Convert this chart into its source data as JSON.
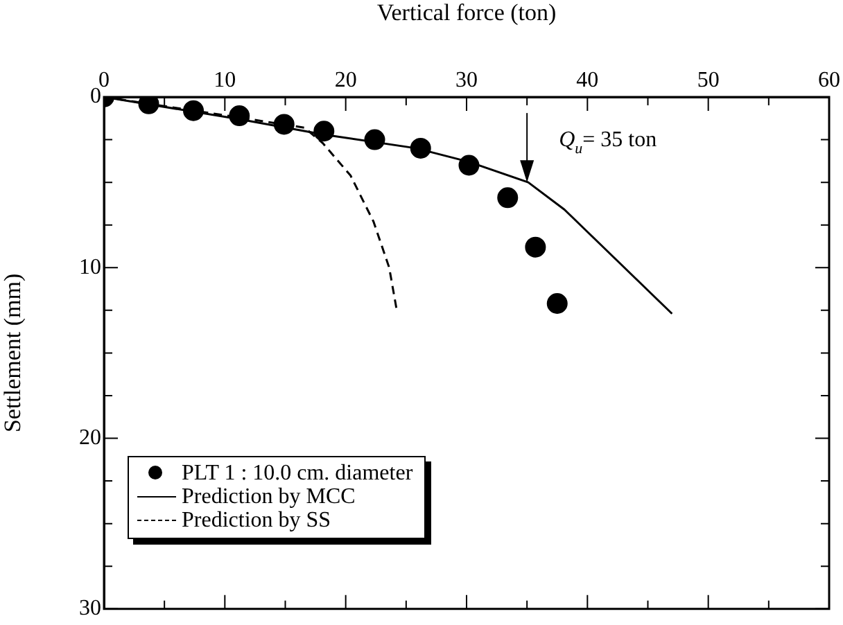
{
  "chart_data": {
    "type": "scatter",
    "xlabel": "Vertical force (ton)",
    "ylabel": "Settlement (mm)",
    "xlim": [
      0,
      60
    ],
    "xticks": [
      0,
      {
        "value": 5,
        "label": null
      },
      10,
      {
        "value": 15,
        "label": null
      },
      20,
      {
        "value": 25,
        "label": null
      },
      30,
      {
        "value": 35,
        "label": null
      },
      40,
      {
        "value": 45,
        "label": null
      },
      50,
      {
        "value": 55,
        "label": null
      },
      60
    ],
    "ylim": [
      30,
      0
    ],
    "yticks": [
      0,
      {
        "value": 2.5,
        "label": null
      },
      {
        "value": 5,
        "label": null
      },
      {
        "value": 7.5,
        "label": null
      },
      10,
      {
        "value": 12.5,
        "label": null
      },
      {
        "value": 15,
        "label": null
      },
      {
        "value": 17.5,
        "label": null
      },
      20,
      {
        "value": 22.5,
        "label": null
      },
      {
        "value": 25,
        "label": null
      },
      {
        "value": 27.5,
        "label": null
      },
      30
    ],
    "grid": false,
    "legend": "bottom left",
    "series": [
      {
        "name": "PLT 1 : 10.0 cm. diameter",
        "type": "scatter",
        "marker": "circle",
        "color": "#000000",
        "x": [
          0,
          3.7,
          7.4,
          11.2,
          14.9,
          18.2,
          22.4,
          26.2,
          30.2,
          33.4,
          35.7,
          37.5
        ],
        "values": [
          0,
          0.4,
          0.8,
          1.1,
          1.6,
          2.0,
          2.5,
          3.0,
          4.0,
          5.9,
          8.8,
          12.1
        ]
      },
      {
        "name": "Prediction by MCC",
        "type": "line",
        "marker": "none",
        "line_style": "solid",
        "color": "#000000",
        "x": [
          0,
          11.2,
          18.2,
          25.8,
          30.2,
          35.1,
          38.1,
          47.0
        ],
        "values": [
          0,
          1.3,
          2.2,
          3.0,
          3.8,
          5.0,
          6.6,
          12.7
        ]
      },
      {
        "name": "Prediction by SS",
        "type": "line",
        "marker": "none",
        "line_style": "dashed",
        "color": "#000000",
        "x": [
          0,
          11.2,
          16.6,
          18.1,
          20.4,
          22.3,
          23.6,
          24.2
        ],
        "values": [
          0,
          1.2,
          1.8,
          2.7,
          4.6,
          7.3,
          10.0,
          12.4
        ]
      }
    ],
    "annotations": [
      {
        "text": "Q$_{u}$= 35 ton",
        "x": 35,
        "y": 5.0
      }
    ]
  }
}
